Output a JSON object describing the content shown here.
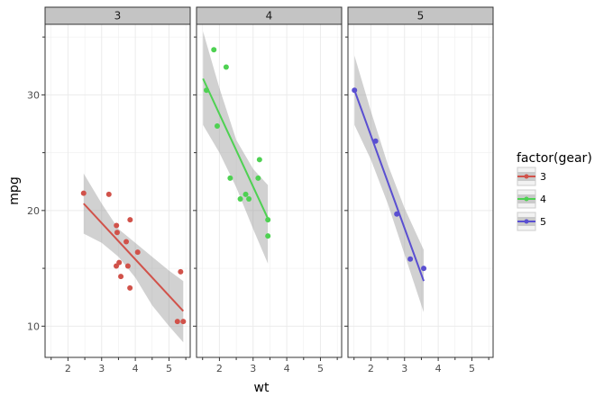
{
  "chart_data": {
    "type": "scatter",
    "facet_by": "gear",
    "xlabel": "wt",
    "ylabel": "mpg",
    "x_ticks": [
      2,
      3,
      4,
      5
    ],
    "y_ticks": [
      10,
      20,
      30
    ],
    "xlim": [
      1.32,
      5.63
    ],
    "ylim": [
      7.3,
      36.1
    ],
    "legend": {
      "title": "factor(gear)",
      "placement": "right",
      "entries": [
        {
          "label": "3",
          "color": "#d1524a"
        },
        {
          "label": "4",
          "color": "#4ed152"
        },
        {
          "label": "5",
          "color": "#5a4fd1"
        }
      ]
    },
    "panel_background": "#ffffff",
    "grid_color": "#ebebeb",
    "strip_fill": "#c4c4c4",
    "band_fill": "#999999",
    "panels": [
      {
        "label": "3",
        "color": "#d1524a",
        "points": [
          [
            2.465,
            21.5
          ],
          [
            3.215,
            21.4
          ],
          [
            3.44,
            18.7
          ],
          [
            3.46,
            18.1
          ],
          [
            3.57,
            14.3
          ],
          [
            4.07,
            16.4
          ],
          [
            3.73,
            17.3
          ],
          [
            3.78,
            15.2
          ],
          [
            5.25,
            10.4
          ],
          [
            5.424,
            10.4
          ],
          [
            5.345,
            14.7
          ],
          [
            3.52,
            15.5
          ],
          [
            3.435,
            15.2
          ],
          [
            3.84,
            13.3
          ],
          [
            3.845,
            19.2
          ]
        ],
        "fit": {
          "x": [
            2.465,
            5.424
          ],
          "y": [
            20.6,
            11.3
          ]
        },
        "band": {
          "x": [
            2.465,
            3.0,
            3.5,
            4.0,
            4.5,
            5.0,
            5.424
          ],
          "upper": [
            23.2,
            20.6,
            18.4,
            17.2,
            16.0,
            14.8,
            13.9
          ],
          "lower": [
            18.0,
            17.2,
            16.0,
            14.2,
            11.8,
            10.0,
            8.6
          ]
        }
      },
      {
        "label": "4",
        "color": "#4ed152",
        "points": [
          [
            1.615,
            30.4
          ],
          [
            1.835,
            33.9
          ],
          [
            1.935,
            27.3
          ],
          [
            2.2,
            32.4
          ],
          [
            2.32,
            22.8
          ],
          [
            2.62,
            21.0
          ],
          [
            2.78,
            21.4
          ],
          [
            2.875,
            21.0
          ],
          [
            3.15,
            22.8
          ],
          [
            3.19,
            24.4
          ],
          [
            3.44,
            19.2
          ],
          [
            3.44,
            17.8
          ]
        ],
        "fit": {
          "x": [
            1.513,
            3.44
          ],
          "y": [
            31.4,
            19.3
          ]
        },
        "band": {
          "x": [
            1.513,
            2.0,
            2.5,
            3.0,
            3.44
          ],
          "upper": [
            35.5,
            30.6,
            26.1,
            23.6,
            22.2
          ],
          "lower": [
            27.4,
            25.0,
            22.0,
            18.4,
            15.4
          ]
        }
      },
      {
        "label": "5",
        "color": "#5a4fd1",
        "points": [
          [
            1.513,
            30.4
          ],
          [
            2.14,
            26.0
          ],
          [
            2.77,
            19.7
          ],
          [
            3.17,
            15.8
          ],
          [
            3.57,
            15.0
          ]
        ],
        "fit": {
          "x": [
            1.513,
            3.57
          ],
          "y": [
            30.4,
            13.9
          ]
        },
        "band": {
          "x": [
            1.513,
            2.0,
            2.5,
            3.0,
            3.57
          ],
          "upper": [
            33.4,
            28.6,
            24.0,
            20.2,
            16.6
          ],
          "lower": [
            27.4,
            24.4,
            20.6,
            16.2,
            11.2
          ]
        }
      }
    ]
  }
}
